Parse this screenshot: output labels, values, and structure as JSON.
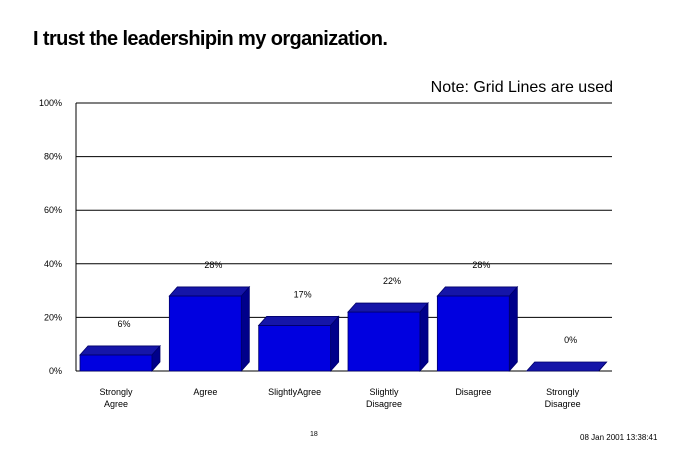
{
  "chart_data": {
    "type": "bar",
    "title": "I trust the leadershipin my organization.",
    "note": "Note: Grid Lines are used",
    "categories": [
      [
        "Strongly",
        "Agree"
      ],
      [
        "Agree"
      ],
      [
        "SlightlyAgree"
      ],
      [
        "Slightly",
        "Disagree"
      ],
      [
        "Disagree"
      ],
      [
        "Strongly",
        "Disagree"
      ]
    ],
    "values": [
      6,
      28,
      17,
      22,
      28,
      0
    ],
    "data_labels": [
      "6%",
      "28%",
      "17%",
      "22%",
      "28%",
      "0%"
    ],
    "yticks": [
      "0%",
      "20%",
      "40%",
      "60%",
      "80%",
      "100%"
    ],
    "ylim": [
      0,
      100
    ],
    "grid": true,
    "bar_color": "#0000e0",
    "bar_side_color": "#00008a",
    "bar_top_color": "#1515a8"
  },
  "footer": {
    "page_number": "18",
    "timestamp": "08 Jan 2001 13:38:41"
  }
}
